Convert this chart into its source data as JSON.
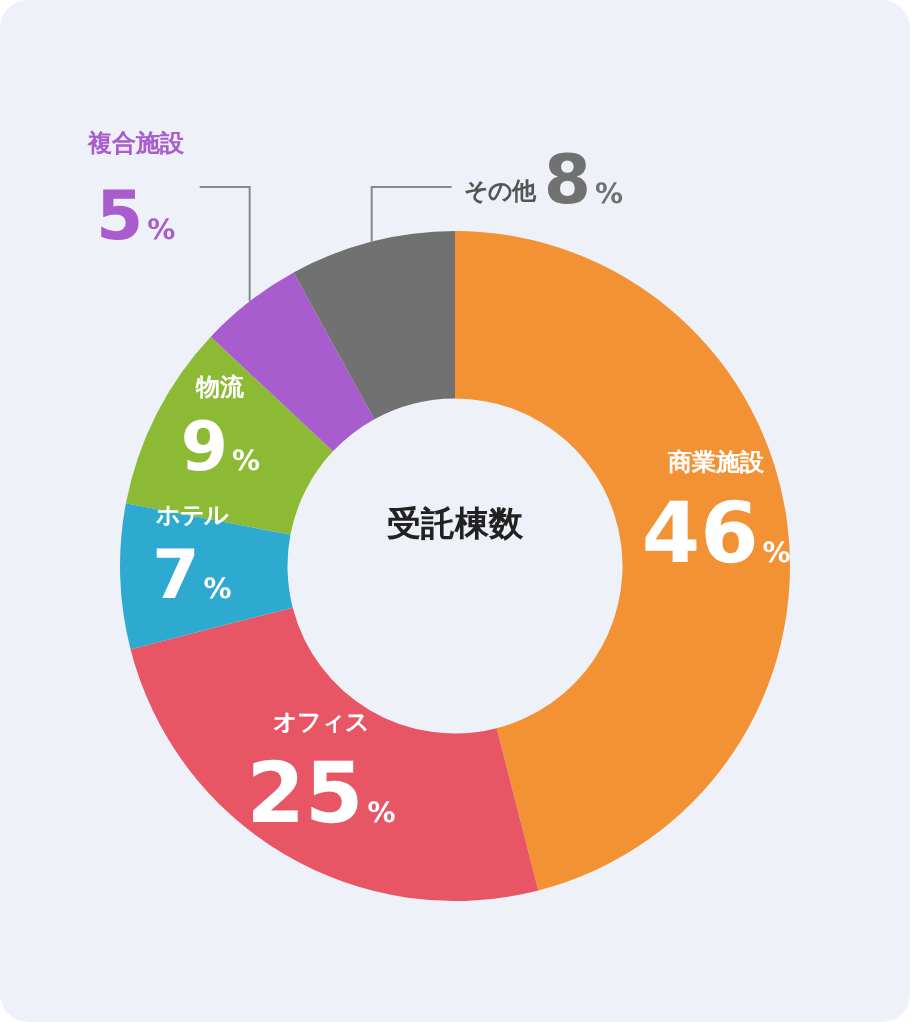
{
  "chart_data": {
    "type": "donut",
    "title": "受託棟数",
    "categories": [
      "商業施設",
      "オフィス",
      "ホテル",
      "物流",
      "複合施設",
      "その他"
    ],
    "values": [
      46,
      25,
      7,
      9,
      5,
      8
    ],
    "colors": [
      "#f39234",
      "#e85564",
      "#2eaad1",
      "#8cba35",
      "#a85ccd",
      "#717171"
    ],
    "value_labels": [
      "46%",
      "25%",
      "7%",
      "9%",
      "5%",
      "8%"
    ],
    "legend": false
  }
}
